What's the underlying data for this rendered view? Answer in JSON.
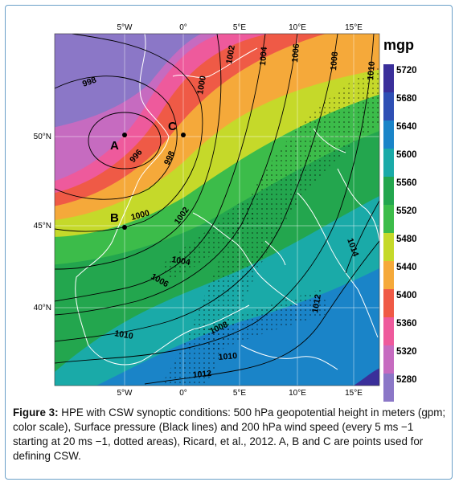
{
  "figure": {
    "caption_label": "Figure 3:",
    "caption_text": "HPE with CSW synoptic conditions: 500 hPa geopotential height in meters (gpm; color scale), Surface pressure (Black lines) and 200 hPa wind speed (every 5 ms −1 starting at 20 ms −1, dotted areas), Ricard, et al., 2012. A, B and C are points used for defining CSW."
  },
  "map": {
    "lon_labels": [
      "5°W",
      "0°",
      "5°E",
      "10°E",
      "15°E"
    ],
    "lat_labels": [
      "50°N",
      "45°N",
      "40°N"
    ],
    "points": [
      {
        "id": "A",
        "label": "A"
      },
      {
        "id": "B",
        "label": "B"
      },
      {
        "id": "C",
        "label": "C"
      }
    ],
    "isobar_labels": [
      "998",
      "996",
      "998",
      "1000",
      "1002",
      "1004",
      "1006",
      "1008",
      "1010",
      "1000",
      "1002",
      "1004",
      "1006",
      "1008",
      "1010",
      "1012",
      "1012",
      "1014",
      "1010"
    ]
  },
  "colorbar": {
    "unit": "mgp",
    "levels": [
      {
        "value": "5720",
        "color": "#3a2f9a"
      },
      {
        "value": "5680",
        "color": "#2e4fb4"
      },
      {
        "value": "5640",
        "color": "#1a84c8"
      },
      {
        "value": "5600",
        "color": "#1aaaa8"
      },
      {
        "value": "5560",
        "color": "#23a64e"
      },
      {
        "value": "5520",
        "color": "#3cbc4a"
      },
      {
        "value": "5480",
        "color": "#c5d92a"
      },
      {
        "value": "5440",
        "color": "#f5a93a"
      },
      {
        "value": "5400",
        "color": "#ef5a46"
      },
      {
        "value": "5360",
        "color": "#ee5a9c"
      },
      {
        "value": "5320",
        "color": "#c66bc0"
      },
      {
        "value": "5280",
        "color": "#8b77c7"
      }
    ]
  }
}
